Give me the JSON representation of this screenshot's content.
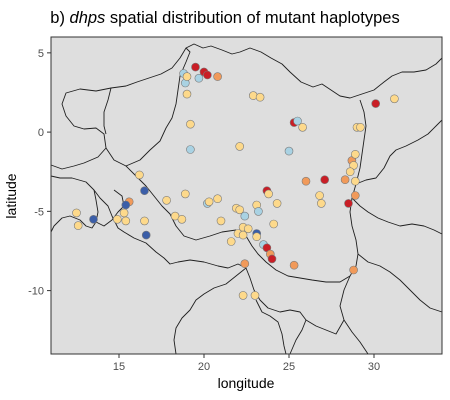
{
  "chart_data": {
    "type": "scatter",
    "title_prefix": "b) ",
    "title_italic": "dhps",
    "title_suffix": " spatial distribution of mutant haplotypes",
    "xlabel": "longitude",
    "ylabel": "latitude",
    "xlim": [
      11.0,
      34.0
    ],
    "ylim": [
      -14.0,
      6.0
    ],
    "xticks": [
      15,
      20,
      25,
      30
    ],
    "yticks": [
      5,
      0,
      -5,
      -10
    ],
    "xtick_labels": [
      "15",
      "20",
      "25",
      "30"
    ],
    "ytick_labels": [
      "5",
      "0",
      "-5",
      "-10"
    ],
    "grid": false,
    "legend": "none",
    "colors": {
      "panel": "#dedede",
      "land": "#dedede",
      "border": "#1f1f1f",
      "yellow": "#fdd98b",
      "light_blue": "#a9d2e3",
      "orange": "#f19a5a",
      "red": "#c91e26",
      "dark_blue": "#3b5ea8"
    },
    "points": [
      {
        "x": 19.5,
        "y": 4.1,
        "c": "red"
      },
      {
        "x": 20.0,
        "y": 3.8,
        "c": "red"
      },
      {
        "x": 20.2,
        "y": 3.6,
        "c": "red"
      },
      {
        "x": 18.8,
        "y": 3.7,
        "c": "light_blue"
      },
      {
        "x": 18.9,
        "y": 3.1,
        "c": "light_blue"
      },
      {
        "x": 19.0,
        "y": 3.5,
        "c": "yellow"
      },
      {
        "x": 19.7,
        "y": 3.4,
        "c": "light_blue"
      },
      {
        "x": 20.8,
        "y": 3.5,
        "c": "orange"
      },
      {
        "x": 19.0,
        "y": 2.4,
        "c": "yellow"
      },
      {
        "x": 22.9,
        "y": 2.3,
        "c": "yellow"
      },
      {
        "x": 23.3,
        "y": 2.2,
        "c": "yellow"
      },
      {
        "x": 19.2,
        "y": 0.5,
        "c": "yellow"
      },
      {
        "x": 25.3,
        "y": 0.6,
        "c": "red"
      },
      {
        "x": 25.5,
        "y": 0.7,
        "c": "light_blue"
      },
      {
        "x": 25.8,
        "y": 0.3,
        "c": "yellow"
      },
      {
        "x": 30.1,
        "y": 1.8,
        "c": "red"
      },
      {
        "x": 31.2,
        "y": 2.1,
        "c": "yellow"
      },
      {
        "x": 29.0,
        "y": 0.3,
        "c": "yellow"
      },
      {
        "x": 29.2,
        "y": 0.3,
        "c": "yellow"
      },
      {
        "x": 19.2,
        "y": -1.1,
        "c": "light_blue"
      },
      {
        "x": 22.1,
        "y": -0.9,
        "c": "yellow"
      },
      {
        "x": 25.0,
        "y": -1.2,
        "c": "light_blue"
      },
      {
        "x": 28.7,
        "y": -1.8,
        "c": "orange"
      },
      {
        "x": 28.9,
        "y": -1.4,
        "c": "yellow"
      },
      {
        "x": 28.8,
        "y": -2.1,
        "c": "yellow"
      },
      {
        "x": 28.6,
        "y": -2.5,
        "c": "yellow"
      },
      {
        "x": 26.0,
        "y": -3.1,
        "c": "orange"
      },
      {
        "x": 27.1,
        "y": -3.0,
        "c": "red"
      },
      {
        "x": 28.3,
        "y": -3.0,
        "c": "orange"
      },
      {
        "x": 28.9,
        "y": -3.1,
        "c": "yellow"
      },
      {
        "x": 26.8,
        "y": -4.0,
        "c": "yellow"
      },
      {
        "x": 26.9,
        "y": -4.5,
        "c": "yellow"
      },
      {
        "x": 28.5,
        "y": -4.5,
        "c": "red"
      },
      {
        "x": 28.9,
        "y": -4.0,
        "c": "orange"
      },
      {
        "x": 16.2,
        "y": -2.7,
        "c": "yellow"
      },
      {
        "x": 16.5,
        "y": -3.7,
        "c": "dark_blue"
      },
      {
        "x": 18.9,
        "y": -3.9,
        "c": "yellow"
      },
      {
        "x": 20.8,
        "y": -4.2,
        "c": "yellow"
      },
      {
        "x": 20.2,
        "y": -4.5,
        "c": "light_blue"
      },
      {
        "x": 20.3,
        "y": -4.4,
        "c": "yellow"
      },
      {
        "x": 21.9,
        "y": -4.8,
        "c": "yellow"
      },
      {
        "x": 22.1,
        "y": -4.9,
        "c": "yellow"
      },
      {
        "x": 23.1,
        "y": -4.6,
        "c": "yellow"
      },
      {
        "x": 23.2,
        "y": -5.0,
        "c": "light_blue"
      },
      {
        "x": 23.7,
        "y": -3.7,
        "c": "red"
      },
      {
        "x": 23.8,
        "y": -3.9,
        "c": "yellow"
      },
      {
        "x": 24.3,
        "y": -4.5,
        "c": "yellow"
      },
      {
        "x": 22.4,
        "y": -5.3,
        "c": "light_blue"
      },
      {
        "x": 22.3,
        "y": -6.0,
        "c": "yellow"
      },
      {
        "x": 22.6,
        "y": -6.1,
        "c": "yellow"
      },
      {
        "x": 21.0,
        "y": -5.6,
        "c": "yellow"
      },
      {
        "x": 22.0,
        "y": -6.4,
        "c": "yellow"
      },
      {
        "x": 22.3,
        "y": -6.5,
        "c": "yellow"
      },
      {
        "x": 23.1,
        "y": -6.4,
        "c": "dark_blue"
      },
      {
        "x": 23.1,
        "y": -6.6,
        "c": "yellow"
      },
      {
        "x": 24.1,
        "y": -5.8,
        "c": "yellow"
      },
      {
        "x": 21.6,
        "y": -6.9,
        "c": "yellow"
      },
      {
        "x": 23.5,
        "y": -7.1,
        "c": "light_blue"
      },
      {
        "x": 23.7,
        "y": -7.3,
        "c": "red"
      },
      {
        "x": 23.9,
        "y": -7.7,
        "c": "orange"
      },
      {
        "x": 24.0,
        "y": -8.0,
        "c": "red"
      },
      {
        "x": 22.4,
        "y": -8.3,
        "c": "orange"
      },
      {
        "x": 25.3,
        "y": -8.4,
        "c": "orange"
      },
      {
        "x": 22.3,
        "y": -10.3,
        "c": "yellow"
      },
      {
        "x": 23.0,
        "y": -10.3,
        "c": "yellow"
      },
      {
        "x": 28.8,
        "y": -8.7,
        "c": "orange"
      },
      {
        "x": 17.8,
        "y": -4.3,
        "c": "yellow"
      },
      {
        "x": 18.3,
        "y": -5.3,
        "c": "yellow"
      },
      {
        "x": 18.7,
        "y": -5.5,
        "c": "yellow"
      },
      {
        "x": 16.5,
        "y": -5.6,
        "c": "yellow"
      },
      {
        "x": 16.6,
        "y": -6.5,
        "c": "dark_blue"
      },
      {
        "x": 15.6,
        "y": -4.4,
        "c": "orange"
      },
      {
        "x": 15.4,
        "y": -4.6,
        "c": "dark_blue"
      },
      {
        "x": 15.3,
        "y": -5.1,
        "c": "yellow"
      },
      {
        "x": 15.4,
        "y": -5.6,
        "c": "yellow"
      },
      {
        "x": 14.9,
        "y": -5.5,
        "c": "yellow"
      },
      {
        "x": 13.5,
        "y": -5.5,
        "c": "dark_blue"
      },
      {
        "x": 12.5,
        "y": -5.1,
        "c": "yellow"
      },
      {
        "x": 12.6,
        "y": -5.9,
        "c": "yellow"
      }
    ]
  }
}
